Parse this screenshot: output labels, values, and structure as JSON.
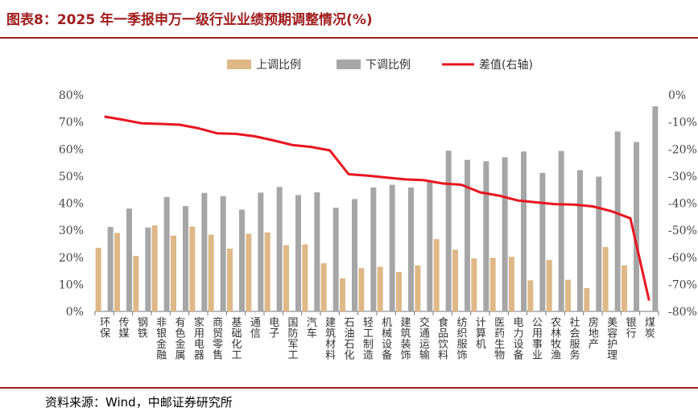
{
  "header": {
    "title": "图表8：2025 年一季报申万一级行业业绩预期调整情况(%)"
  },
  "footer": {
    "source": "资料来源：Wind，中邮证券研究所"
  },
  "chart_data": {
    "type": "bar",
    "categories": [
      "环保",
      "传媒",
      "钢铁",
      "非银金融",
      "有色金属",
      "家用电器",
      "商贸零售",
      "基础化工",
      "通信",
      "电子",
      "国防军工",
      "汽车",
      "建筑材料",
      "石油石化",
      "轻工制造",
      "机械设备",
      "建筑装饰",
      "交通运输",
      "食品饮料",
      "纺织服饰",
      "计算机",
      "医药生物",
      "电力设备",
      "公用事业",
      "农林牧渔",
      "社会服务",
      "房地产",
      "美容护理",
      "银行",
      "煤炭"
    ],
    "series": [
      {
        "name": "上调比例",
        "color": "#deb887",
        "axis": "left",
        "values": [
          23.5,
          29,
          20.5,
          31.8,
          28,
          31.4,
          28.4,
          23.2,
          28.7,
          29.2,
          24.5,
          24.8,
          17.8,
          12.2,
          16,
          16.5,
          14.6,
          17,
          26.7,
          22.8,
          19.6,
          19.8,
          20.2,
          11.5,
          19,
          11.7,
          8.6,
          23.8,
          17,
          0
        ]
      },
      {
        "name": "下调比例",
        "color": "#a6a6a6",
        "axis": "left",
        "values": [
          31.2,
          38,
          31,
          42.3,
          38.9,
          43.8,
          42.6,
          37.6,
          43.9,
          46,
          43,
          44,
          38.3,
          41.5,
          45.8,
          46.8,
          45.8,
          48.3,
          59.4,
          56,
          55.5,
          57,
          59.1,
          51.2,
          59.3,
          52.2,
          49.8,
          66.5,
          62.6,
          75.8
        ]
      },
      {
        "name": "差值(右轴)",
        "color": "#e8141e",
        "axis": "right",
        "values": [
          -8,
          -9.2,
          -10.5,
          -10.7,
          -11,
          -12.3,
          -14.2,
          -14.4,
          -15.3,
          -16.8,
          -18.5,
          -19.2,
          -20.5,
          -29.3,
          -29.8,
          -30.5,
          -31.2,
          -31.5,
          -32.7,
          -33.2,
          -36,
          -37.2,
          -39,
          -39.7,
          -40.4,
          -40.5,
          -41.2,
          -43,
          -45.6,
          -76
        ]
      }
    ],
    "left_axis": {
      "ylim": [
        0,
        80
      ],
      "ticks": [
        "0%",
        "10%",
        "20%",
        "30%",
        "40%",
        "50%",
        "60%",
        "70%",
        "80%"
      ]
    },
    "right_axis": {
      "ylim": [
        -80,
        0
      ],
      "ticks": [
        "-80%",
        "-70%",
        "-60%",
        "-50%",
        "-40%",
        "-30%",
        "-20%",
        "-10%",
        "0%"
      ]
    },
    "legend_position": "top-center",
    "grid": false
  }
}
